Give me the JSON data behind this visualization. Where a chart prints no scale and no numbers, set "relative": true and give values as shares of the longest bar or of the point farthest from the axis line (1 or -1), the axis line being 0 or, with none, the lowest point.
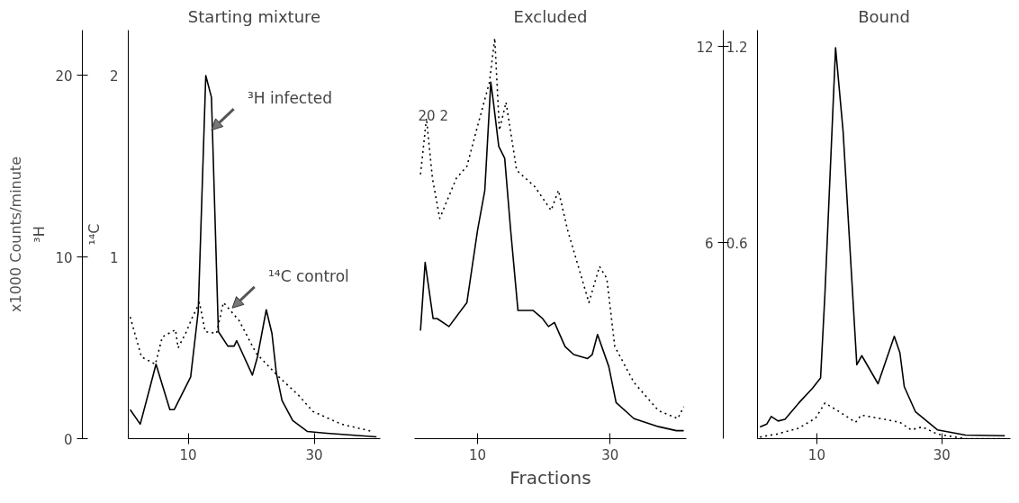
{
  "chart_data": [
    {
      "type": "line",
      "title": "Starting mixture",
      "ylabel": "³H",
      "y2label": "¹⁴C",
      "annotations": [
        {
          "text": "³H infected",
          "x": 13.7,
          "y": 17
        },
        {
          "text": "¹⁴C control",
          "x": 17,
          "y": 7.2
        },
        "x1000 Counts/minute"
      ],
      "xlim": [
        0.5,
        40.5
      ],
      "xticks": [
        10,
        30
      ],
      "ylim": [
        0,
        22.5
      ],
      "yticks": [
        0,
        10,
        20
      ],
      "y2lim": [
        0,
        2.25
      ],
      "y2ticks": [
        1,
        2
      ],
      "series": [
        {
          "color": "#000000",
          "line_style": "solid",
          "x": [
            0.8,
            2.4,
            3.7,
            4.9,
            7.1,
            7.8,
            10.4,
            11.6,
            12.8,
            13.7,
            14.8,
            16.3,
            17.3,
            17.7,
            20.2,
            21.0,
            22.4,
            23.3,
            24.0,
            24.9,
            26.6,
            28.9,
            32.0,
            39.9
          ],
          "values": [
            1.6,
            0.8,
            2.5,
            4.1,
            1.6,
            1.6,
            3.4,
            7.0,
            20.0,
            18.8,
            5.9,
            5.1,
            5.1,
            5.4,
            3.5,
            4.5,
            7.1,
            5.8,
            3.6,
            2.1,
            1.0,
            0.4,
            0.3,
            0.1
          ]
        },
        {
          "color": "#000000",
          "line_style": "dotted",
          "axis": "y2",
          "x": [
            0.8,
            2.6,
            4.8,
            5.9,
            8.0,
            8.4,
            9.6,
            10.7,
            11.8,
            12.7,
            14.5,
            15.6,
            18.1,
            20.8,
            24.4,
            27.5,
            29.8,
            34.3,
            39.2
          ],
          "values": [
            0.67,
            0.45,
            0.41,
            0.56,
            0.6,
            0.5,
            0.58,
            0.67,
            0.75,
            0.59,
            0.58,
            0.75,
            0.65,
            0.47,
            0.34,
            0.24,
            0.15,
            0.08,
            0.04
          ]
        }
      ]
    },
    {
      "type": "line",
      "title": "Excluded",
      "xlabel": "Fractions",
      "relative": true,
      "annotations": [
        "20",
        "2"
      ],
      "xlim": [
        0.5,
        41.5
      ],
      "xticks": [
        10,
        30
      ],
      "series": [
        {
          "color": "#000000",
          "line_style": "solid",
          "x": [
            1.4,
            2.1,
            3.3,
            3.9,
            5.7,
            8.4,
            10.0,
            11.1,
            12.0,
            12.4,
            13.2,
            14.1,
            15.0,
            16.1,
            18.4,
            19.8,
            20.7,
            21.6,
            23.2,
            24.5,
            26.6,
            27.3,
            28.1,
            29.8,
            30.9,
            33.6,
            37.3,
            40.0,
            41.1
          ],
          "values": [
            0.27,
            0.44,
            0.3,
            0.3,
            0.28,
            0.34,
            0.52,
            0.62,
            0.89,
            0.84,
            0.73,
            0.7,
            0.52,
            0.32,
            0.32,
            0.3,
            0.28,
            0.29,
            0.23,
            0.21,
            0.2,
            0.21,
            0.26,
            0.18,
            0.09,
            0.05,
            0.03,
            0.02,
            0.02
          ]
        },
        {
          "color": "#000000",
          "line_style": "dotted",
          "x": [
            1.4,
            2.3,
            3.2,
            4.3,
            6.8,
            8.4,
            10.0,
            11.8,
            12.6,
            13.3,
            14.3,
            15.9,
            18.6,
            21.1,
            22.2,
            23.6,
            26.8,
            28.4,
            29.5,
            30.7,
            33.6,
            37.3,
            40.2,
            41.1
          ],
          "values": [
            0.66,
            0.8,
            0.65,
            0.55,
            0.65,
            0.68,
            0.78,
            0.89,
            1.0,
            0.77,
            0.84,
            0.67,
            0.63,
            0.57,
            0.62,
            0.52,
            0.34,
            0.43,
            0.4,
            0.23,
            0.14,
            0.07,
            0.05,
            0.08
          ]
        }
      ]
    },
    {
      "type": "line",
      "title": "Bound",
      "xlim": [
        0.5,
        41
      ],
      "xticks": [
        10,
        30
      ],
      "ylim": [
        0,
        12.5
      ],
      "yticks": [
        6,
        12
      ],
      "y2lim": [
        0,
        1.25
      ],
      "y2ticks": [
        0.6,
        1.2
      ],
      "series": [
        {
          "color": "#000000",
          "line_style": "solid",
          "x": [
            0.9,
            2.0,
            2.7,
            3.8,
            4.9,
            7.1,
            9.3,
            10.6,
            11.3,
            13.0,
            14.2,
            16.4,
            17.2,
            19.8,
            22.4,
            23.3,
            24.0,
            25.8,
            29.3,
            33.8,
            40.1
          ],
          "values": [
            0.36,
            0.45,
            0.68,
            0.54,
            0.59,
            1.09,
            1.54,
            1.86,
            4.44,
            11.96,
            9.42,
            2.26,
            2.54,
            1.68,
            3.13,
            2.63,
            1.59,
            0.82,
            0.27,
            0.11,
            0.09
          ]
        },
        {
          "color": "#000000",
          "line_style": "dotted",
          "axis": "y2",
          "x": [
            0.9,
            3.6,
            7.1,
            9.8,
            11.3,
            13.3,
            16.2,
            17.1,
            20.9,
            23.3,
            25.1,
            26.9,
            29.3,
            33.8,
            40.0
          ],
          "values": [
            0.005,
            0.014,
            0.032,
            0.063,
            0.109,
            0.086,
            0.05,
            0.072,
            0.059,
            0.05,
            0.027,
            0.036,
            0.014,
            0.0,
            0.0
          ]
        }
      ]
    }
  ]
}
